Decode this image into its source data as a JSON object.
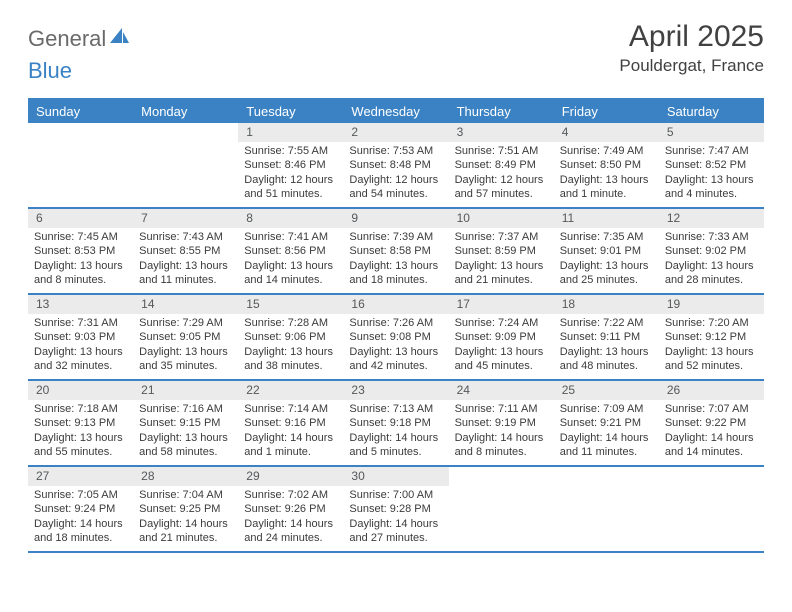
{
  "brand": {
    "part1": "General",
    "part2": "Blue"
  },
  "title": "April 2025",
  "location": "Pouldergat, France",
  "colors": {
    "accent": "#3a82c4",
    "daynum_bg": "#ebebeb",
    "text": "#3b3b3b",
    "title_text": "#414141",
    "logo_gray": "#6a6a6a"
  },
  "day_headers": [
    "Sunday",
    "Monday",
    "Tuesday",
    "Wednesday",
    "Thursday",
    "Friday",
    "Saturday"
  ],
  "weeks": [
    [
      {
        "blank": true
      },
      {
        "blank": true
      },
      {
        "day": "1",
        "sunrise": "Sunrise: 7:55 AM",
        "sunset": "Sunset: 8:46 PM",
        "daylight1": "Daylight: 12 hours",
        "daylight2": "and 51 minutes."
      },
      {
        "day": "2",
        "sunrise": "Sunrise: 7:53 AM",
        "sunset": "Sunset: 8:48 PM",
        "daylight1": "Daylight: 12 hours",
        "daylight2": "and 54 minutes."
      },
      {
        "day": "3",
        "sunrise": "Sunrise: 7:51 AM",
        "sunset": "Sunset: 8:49 PM",
        "daylight1": "Daylight: 12 hours",
        "daylight2": "and 57 minutes."
      },
      {
        "day": "4",
        "sunrise": "Sunrise: 7:49 AM",
        "sunset": "Sunset: 8:50 PM",
        "daylight1": "Daylight: 13 hours",
        "daylight2": "and 1 minute."
      },
      {
        "day": "5",
        "sunrise": "Sunrise: 7:47 AM",
        "sunset": "Sunset: 8:52 PM",
        "daylight1": "Daylight: 13 hours",
        "daylight2": "and 4 minutes."
      }
    ],
    [
      {
        "day": "6",
        "sunrise": "Sunrise: 7:45 AM",
        "sunset": "Sunset: 8:53 PM",
        "daylight1": "Daylight: 13 hours",
        "daylight2": "and 8 minutes."
      },
      {
        "day": "7",
        "sunrise": "Sunrise: 7:43 AM",
        "sunset": "Sunset: 8:55 PM",
        "daylight1": "Daylight: 13 hours",
        "daylight2": "and 11 minutes."
      },
      {
        "day": "8",
        "sunrise": "Sunrise: 7:41 AM",
        "sunset": "Sunset: 8:56 PM",
        "daylight1": "Daylight: 13 hours",
        "daylight2": "and 14 minutes."
      },
      {
        "day": "9",
        "sunrise": "Sunrise: 7:39 AM",
        "sunset": "Sunset: 8:58 PM",
        "daylight1": "Daylight: 13 hours",
        "daylight2": "and 18 minutes."
      },
      {
        "day": "10",
        "sunrise": "Sunrise: 7:37 AM",
        "sunset": "Sunset: 8:59 PM",
        "daylight1": "Daylight: 13 hours",
        "daylight2": "and 21 minutes."
      },
      {
        "day": "11",
        "sunrise": "Sunrise: 7:35 AM",
        "sunset": "Sunset: 9:01 PM",
        "daylight1": "Daylight: 13 hours",
        "daylight2": "and 25 minutes."
      },
      {
        "day": "12",
        "sunrise": "Sunrise: 7:33 AM",
        "sunset": "Sunset: 9:02 PM",
        "daylight1": "Daylight: 13 hours",
        "daylight2": "and 28 minutes."
      }
    ],
    [
      {
        "day": "13",
        "sunrise": "Sunrise: 7:31 AM",
        "sunset": "Sunset: 9:03 PM",
        "daylight1": "Daylight: 13 hours",
        "daylight2": "and 32 minutes."
      },
      {
        "day": "14",
        "sunrise": "Sunrise: 7:29 AM",
        "sunset": "Sunset: 9:05 PM",
        "daylight1": "Daylight: 13 hours",
        "daylight2": "and 35 minutes."
      },
      {
        "day": "15",
        "sunrise": "Sunrise: 7:28 AM",
        "sunset": "Sunset: 9:06 PM",
        "daylight1": "Daylight: 13 hours",
        "daylight2": "and 38 minutes."
      },
      {
        "day": "16",
        "sunrise": "Sunrise: 7:26 AM",
        "sunset": "Sunset: 9:08 PM",
        "daylight1": "Daylight: 13 hours",
        "daylight2": "and 42 minutes."
      },
      {
        "day": "17",
        "sunrise": "Sunrise: 7:24 AM",
        "sunset": "Sunset: 9:09 PM",
        "daylight1": "Daylight: 13 hours",
        "daylight2": "and 45 minutes."
      },
      {
        "day": "18",
        "sunrise": "Sunrise: 7:22 AM",
        "sunset": "Sunset: 9:11 PM",
        "daylight1": "Daylight: 13 hours",
        "daylight2": "and 48 minutes."
      },
      {
        "day": "19",
        "sunrise": "Sunrise: 7:20 AM",
        "sunset": "Sunset: 9:12 PM",
        "daylight1": "Daylight: 13 hours",
        "daylight2": "and 52 minutes."
      }
    ],
    [
      {
        "day": "20",
        "sunrise": "Sunrise: 7:18 AM",
        "sunset": "Sunset: 9:13 PM",
        "daylight1": "Daylight: 13 hours",
        "daylight2": "and 55 minutes."
      },
      {
        "day": "21",
        "sunrise": "Sunrise: 7:16 AM",
        "sunset": "Sunset: 9:15 PM",
        "daylight1": "Daylight: 13 hours",
        "daylight2": "and 58 minutes."
      },
      {
        "day": "22",
        "sunrise": "Sunrise: 7:14 AM",
        "sunset": "Sunset: 9:16 PM",
        "daylight1": "Daylight: 14 hours",
        "daylight2": "and 1 minute."
      },
      {
        "day": "23",
        "sunrise": "Sunrise: 7:13 AM",
        "sunset": "Sunset: 9:18 PM",
        "daylight1": "Daylight: 14 hours",
        "daylight2": "and 5 minutes."
      },
      {
        "day": "24",
        "sunrise": "Sunrise: 7:11 AM",
        "sunset": "Sunset: 9:19 PM",
        "daylight1": "Daylight: 14 hours",
        "daylight2": "and 8 minutes."
      },
      {
        "day": "25",
        "sunrise": "Sunrise: 7:09 AM",
        "sunset": "Sunset: 9:21 PM",
        "daylight1": "Daylight: 14 hours",
        "daylight2": "and 11 minutes."
      },
      {
        "day": "26",
        "sunrise": "Sunrise: 7:07 AM",
        "sunset": "Sunset: 9:22 PM",
        "daylight1": "Daylight: 14 hours",
        "daylight2": "and 14 minutes."
      }
    ],
    [
      {
        "day": "27",
        "sunrise": "Sunrise: 7:05 AM",
        "sunset": "Sunset: 9:24 PM",
        "daylight1": "Daylight: 14 hours",
        "daylight2": "and 18 minutes."
      },
      {
        "day": "28",
        "sunrise": "Sunrise: 7:04 AM",
        "sunset": "Sunset: 9:25 PM",
        "daylight1": "Daylight: 14 hours",
        "daylight2": "and 21 minutes."
      },
      {
        "day": "29",
        "sunrise": "Sunrise: 7:02 AM",
        "sunset": "Sunset: 9:26 PM",
        "daylight1": "Daylight: 14 hours",
        "daylight2": "and 24 minutes."
      },
      {
        "day": "30",
        "sunrise": "Sunrise: 7:00 AM",
        "sunset": "Sunset: 9:28 PM",
        "daylight1": "Daylight: 14 hours",
        "daylight2": "and 27 minutes."
      },
      {
        "blank": true
      },
      {
        "blank": true
      },
      {
        "blank": true
      }
    ]
  ]
}
